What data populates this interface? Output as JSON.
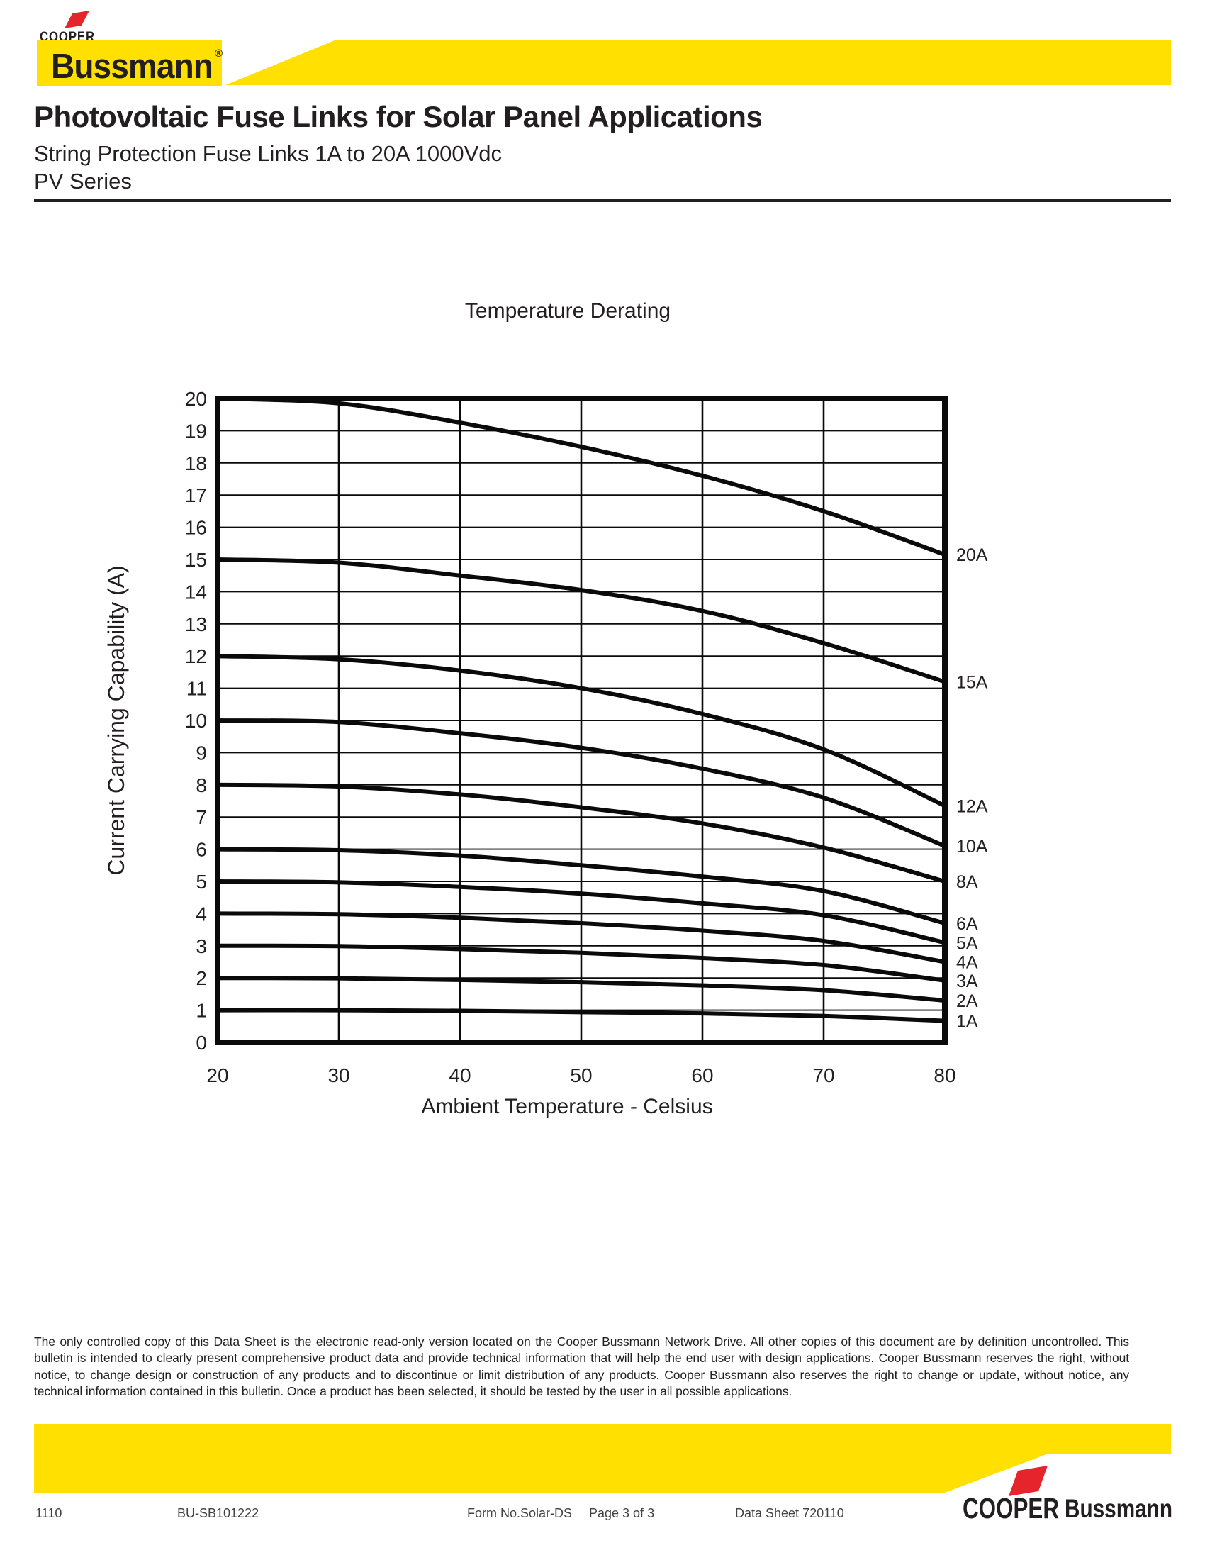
{
  "header": {
    "brand_small": "COOPER",
    "brand_large": "Bussmann",
    "brand_reg": "®",
    "title": "Photovoltaic Fuse Links for Solar Panel Applications",
    "subtitle1": "String Protection Fuse Links 1A to 20A 1000Vdc",
    "subtitle2": "PV Series"
  },
  "colors": {
    "brand_yellow": "#FFE000",
    "brand_red": "#E5242B",
    "ink_black": "#231F20",
    "curve_black": "#0a0a0a"
  },
  "chart_data": {
    "type": "line",
    "title": "Temperature Derating",
    "xlabel": "Ambient Temperature - Celsius",
    "ylabel": "Current Carrying Capability (A)",
    "xlim": [
      20,
      80
    ],
    "ylim": [
      0,
      20
    ],
    "x_ticks": [
      20,
      30,
      40,
      50,
      60,
      70,
      80
    ],
    "y_ticks": [
      0,
      1,
      2,
      3,
      4,
      5,
      6,
      7,
      8,
      9,
      10,
      11,
      12,
      13,
      14,
      15,
      16,
      17,
      18,
      19,
      20
    ],
    "grid": "on",
    "legend_position": "labels-at-curve-ends-right",
    "x": [
      20,
      30,
      40,
      50,
      60,
      70,
      80
    ],
    "series": [
      {
        "name": "20A",
        "values": [
          20,
          19.85,
          19.25,
          18.5,
          17.6,
          16.5,
          15.15
        ]
      },
      {
        "name": "15A",
        "values": [
          15,
          14.9,
          14.5,
          14.05,
          13.4,
          12.4,
          11.2
        ]
      },
      {
        "name": "12A",
        "values": [
          12,
          11.9,
          11.55,
          11.0,
          10.2,
          9.1,
          7.35
        ]
      },
      {
        "name": "10A",
        "values": [
          10,
          9.95,
          9.6,
          9.15,
          8.5,
          7.6,
          6.1
        ]
      },
      {
        "name": "8A",
        "values": [
          8,
          7.95,
          7.7,
          7.3,
          6.8,
          6.05,
          5.0
        ]
      },
      {
        "name": "6A",
        "values": [
          6,
          5.97,
          5.8,
          5.5,
          5.15,
          4.7,
          3.7
        ]
      },
      {
        "name": "5A",
        "values": [
          5,
          4.97,
          4.83,
          4.62,
          4.32,
          3.95,
          3.1
        ]
      },
      {
        "name": "4A",
        "values": [
          4,
          3.98,
          3.87,
          3.7,
          3.47,
          3.15,
          2.5
        ]
      },
      {
        "name": "3A",
        "values": [
          3,
          2.99,
          2.9,
          2.78,
          2.62,
          2.4,
          1.92
        ]
      },
      {
        "name": "2A",
        "values": [
          2,
          1.99,
          1.94,
          1.87,
          1.77,
          1.62,
          1.3
        ]
      },
      {
        "name": "1A",
        "values": [
          1,
          1.0,
          0.98,
          0.94,
          0.9,
          0.82,
          0.67
        ]
      }
    ]
  },
  "disclaimer": "The only controlled copy of this Data Sheet is the electronic read-only version located on the Cooper Bussmann Network Drive. All other copies of this document are by definition uncontrolled. This bulletin is intended to clearly present comprehensive product data and provide technical information that will help the end user with design applications. Cooper Bussmann reserves the right, without notice, to change design or construction of any products and to discontinue or limit distribution of any products. Cooper Bussmann also reserves the right to change or update, without notice, any technical information contained in this bulletin. Once a product has been selected, it should be tested by the user in all possible applications.",
  "footer": {
    "item1": "1110",
    "item2": "BU-SB101222",
    "item3": "Form No.Solar-DS",
    "item4": "Page 3 of 3",
    "item5": "Data Sheet 720110",
    "logo_cooper": "COOPER",
    "logo_bussmann": "Bussmann"
  }
}
